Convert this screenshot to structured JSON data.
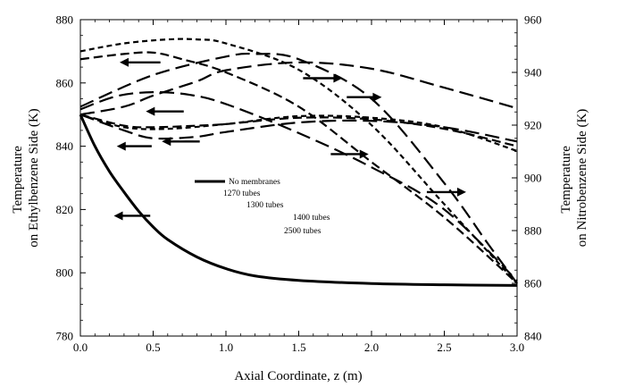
{
  "chart_data": {
    "type": "line",
    "xlabel": "Axial Coordinate, z (m)",
    "ylabel_left": [
      "Temperature",
      "on Ethylbenzene Side (K)"
    ],
    "ylabel_right": [
      "Temperature",
      "on Nitrobenzene Side (K)"
    ],
    "xlim": [
      0,
      3.0
    ],
    "ylim_left": [
      780,
      880
    ],
    "ylim_right": [
      840,
      960
    ],
    "x_ticks": [
      "0.0",
      "0.5",
      "1.0",
      "1.5",
      "2.0",
      "2.5",
      "3.0"
    ],
    "y_left_ticks": [
      "780",
      "800",
      "820",
      "840",
      "860",
      "880"
    ],
    "y_right_ticks": [
      "840",
      "860",
      "880",
      "900",
      "920",
      "940",
      "960"
    ],
    "legend": {
      "position": "center-left",
      "entries": [
        {
          "label": "No membranes",
          "style": "solid"
        },
        {
          "label": "1270 tubes",
          "style": "long-dash"
        },
        {
          "label": "1300 tubes",
          "style": "long-dash"
        },
        {
          "label": "1400 tubes",
          "style": "medium-dash"
        },
        {
          "label": "2500 tubes",
          "style": "short-dash"
        }
      ]
    },
    "series": [
      {
        "label": "No membranes",
        "axis": "left",
        "style": "solid",
        "points": [
          [
            0,
            850
          ],
          [
            0.1,
            840
          ],
          [
            0.2,
            832
          ],
          [
            0.3,
            825.5
          ],
          [
            0.4,
            819.5
          ],
          [
            0.5,
            814.5
          ],
          [
            0.6,
            810.5
          ],
          [
            0.8,
            805
          ],
          [
            1.0,
            801.3
          ],
          [
            1.2,
            799
          ],
          [
            1.5,
            797.6
          ],
          [
            2.0,
            796.6
          ],
          [
            2.5,
            796.2
          ],
          [
            3.0,
            796
          ]
        ]
      },
      {
        "label": "1270 tubes",
        "axis": "left",
        "style": "long-dash",
        "points": [
          [
            0,
            850
          ],
          [
            0.3,
            845
          ],
          [
            0.5,
            842.5
          ],
          [
            0.8,
            843
          ],
          [
            1.0,
            844.5
          ],
          [
            1.5,
            847.5
          ],
          [
            2.0,
            848
          ],
          [
            2.5,
            846
          ],
          [
            3.0,
            841.5
          ]
        ]
      },
      {
        "label": "1270 tubes",
        "axis": "right",
        "style": "long-dash",
        "points": [
          [
            0,
            926
          ],
          [
            0.25,
            931
          ],
          [
            0.5,
            932.5
          ],
          [
            0.75,
            931.5
          ],
          [
            1.0,
            928
          ],
          [
            1.5,
            917
          ],
          [
            2.0,
            904
          ],
          [
            2.5,
            888
          ],
          [
            3.0,
            861
          ]
        ]
      },
      {
        "label": "1300 tubes",
        "axis": "left",
        "style": "long-dash",
        "points": [
          [
            0,
            850
          ],
          [
            0.3,
            852.5
          ],
          [
            0.5,
            856
          ],
          [
            0.8,
            860.5
          ],
          [
            1.0,
            864
          ],
          [
            1.5,
            866.5
          ],
          [
            2.0,
            864.5
          ],
          [
            2.5,
            858.5
          ],
          [
            3.0,
            852
          ]
        ]
      },
      {
        "label": "1300 tubes",
        "axis": "right",
        "style": "long-dash",
        "points": [
          [
            0,
            927
          ],
          [
            0.5,
            939
          ],
          [
            1.0,
            946
          ],
          [
            1.2,
            947
          ],
          [
            1.5,
            945
          ],
          [
            2.0,
            930
          ],
          [
            2.5,
            898
          ],
          [
            2.8,
            875
          ],
          [
            3.0,
            860
          ]
        ]
      },
      {
        "label": "1400 tubes",
        "axis": "left",
        "style": "medium-dash",
        "points": [
          [
            0,
            850
          ],
          [
            0.3,
            846.5
          ],
          [
            0.5,
            846
          ],
          [
            0.8,
            846.5
          ],
          [
            1.0,
            847
          ],
          [
            1.5,
            849
          ],
          [
            2.0,
            848.5
          ],
          [
            2.5,
            845.5
          ],
          [
            3.0,
            840
          ]
        ]
      },
      {
        "label": "1400 tubes",
        "axis": "right",
        "style": "medium-dash",
        "points": [
          [
            0,
            945
          ],
          [
            0.3,
            947
          ],
          [
            0.5,
            947.5
          ],
          [
            0.7,
            945
          ],
          [
            1.0,
            940
          ],
          [
            1.5,
            927
          ],
          [
            2.0,
            906
          ],
          [
            2.5,
            885
          ],
          [
            3.0,
            860
          ]
        ]
      },
      {
        "label": "2500 tubes",
        "axis": "left",
        "style": "short-dash",
        "points": [
          [
            0,
            850
          ],
          [
            0.3,
            846
          ],
          [
            0.6,
            845.5
          ],
          [
            1.0,
            847
          ],
          [
            1.5,
            849.5
          ],
          [
            2.0,
            849
          ],
          [
            2.5,
            846
          ],
          [
            3.0,
            838.5
          ]
        ]
      },
      {
        "label": "2500 tubes",
        "axis": "right",
        "style": "short-dash",
        "points": [
          [
            0,
            948
          ],
          [
            0.3,
            951
          ],
          [
            0.6,
            952.5
          ],
          [
            0.8,
            952.5
          ],
          [
            1.0,
            951
          ],
          [
            1.5,
            941
          ],
          [
            2.0,
            920
          ],
          [
            2.5,
            890
          ],
          [
            3.0,
            860
          ]
        ]
      }
    ],
    "arrows": [
      {
        "x0": 0.55,
        "x1": 0.27,
        "y": 866.5,
        "axis": "left",
        "direction": "left"
      },
      {
        "x0": 0.71,
        "x1": 0.45,
        "y": 851,
        "axis": "left",
        "direction": "left"
      },
      {
        "x0": 0.49,
        "x1": 0.25,
        "y": 840,
        "axis": "left",
        "direction": "left"
      },
      {
        "x0": 0.82,
        "x1": 0.56,
        "y": 841.5,
        "axis": "left",
        "direction": "left"
      },
      {
        "x0": 0.48,
        "x1": 0.23,
        "y": 818,
        "axis": "left",
        "direction": "left"
      },
      {
        "x0": 1.53,
        "x1": 1.8,
        "y": 861.5,
        "axis": "left",
        "direction": "right"
      },
      {
        "x0": 1.83,
        "x1": 2.07,
        "y": 855.5,
        "axis": "left",
        "direction": "right"
      },
      {
        "x0": 1.72,
        "x1": 1.98,
        "y": 837.5,
        "axis": "left",
        "direction": "right"
      },
      {
        "x0": 2.38,
        "x1": 2.65,
        "y": 825.5,
        "axis": "left",
        "direction": "right"
      }
    ]
  }
}
